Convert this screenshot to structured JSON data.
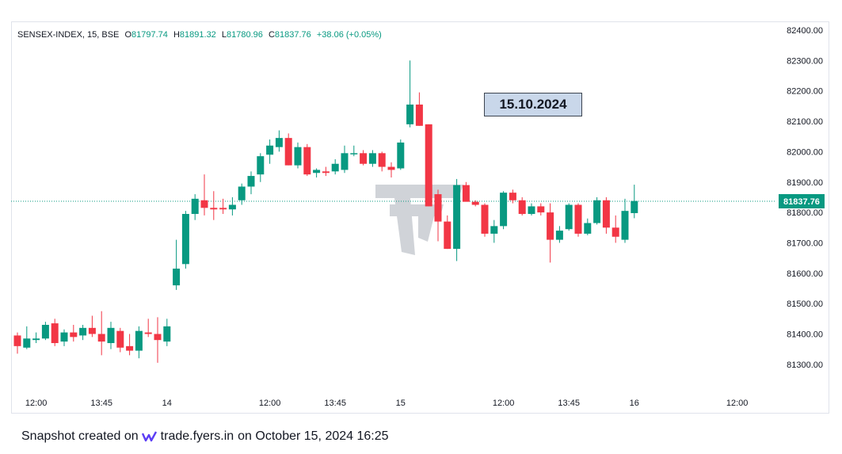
{
  "header": {
    "symbol": "SENSEX-INDEX, 15, BSE",
    "open_label": "O",
    "open": "81797.74",
    "high_label": "H",
    "high": "81891.32",
    "low_label": "L",
    "low": "81780.96",
    "close_label": "C",
    "close": "81837.76",
    "change": "+38.06 (+0.05%)"
  },
  "annotation": {
    "date": "15.10.2024"
  },
  "footer": {
    "prefix": "Snapshot created on",
    "brand": "trade.fyers.in",
    "suffix": "on October 15, 2024 16:25"
  },
  "colors": {
    "up": "#089981",
    "down": "#f23645",
    "badge_bg": "#c9d7ea",
    "last_price": "#089981"
  },
  "icons": [
    "fyers-logo-icon",
    "fyers-watermark"
  ],
  "chart_data": {
    "type": "candlestick",
    "last_price": 81837.76,
    "last_price_label": "81837.76",
    "ylim": [
      81200,
      82450
    ],
    "y_ticks": [
      {
        "value": 82400,
        "label": "82400.00"
      },
      {
        "value": 82300,
        "label": "82300.00"
      },
      {
        "value": 82200,
        "label": "82200.00"
      },
      {
        "value": 82100,
        "label": "82100.00"
      },
      {
        "value": 82000,
        "label": "82000.00"
      },
      {
        "value": 81900,
        "label": "81900.00"
      },
      {
        "value": 81800,
        "label": "81800.00"
      },
      {
        "value": 81700,
        "label": "81700.00"
      },
      {
        "value": 81600,
        "label": "81600.00"
      },
      {
        "value": 81500,
        "label": "81500.00"
      },
      {
        "value": 81400,
        "label": "81400.00"
      },
      {
        "value": 81300,
        "label": "81300.00"
      }
    ],
    "x_ticks": [
      {
        "index": 2,
        "label": "12:00"
      },
      {
        "index": 9,
        "label": "13:45"
      },
      {
        "index": 16,
        "label": "14"
      },
      {
        "index": 27,
        "label": "12:00"
      },
      {
        "index": 34,
        "label": "13:45"
      },
      {
        "index": 41,
        "label": "15"
      },
      {
        "index": 52,
        "label": "12:00"
      },
      {
        "index": 59,
        "label": "13:45"
      },
      {
        "index": 66,
        "label": "16"
      },
      {
        "index": 77,
        "label": "12:00"
      }
    ],
    "candles": [
      {
        "o": 81395,
        "h": 81405,
        "l": 81335,
        "c": 81360
      },
      {
        "o": 81355,
        "h": 81425,
        "l": 81350,
        "c": 81385
      },
      {
        "o": 81380,
        "h": 81405,
        "l": 81370,
        "c": 81385
      },
      {
        "o": 81385,
        "h": 81440,
        "l": 81380,
        "c": 81430
      },
      {
        "o": 81435,
        "h": 81450,
        "l": 81360,
        "c": 81370
      },
      {
        "o": 81375,
        "h": 81415,
        "l": 81360,
        "c": 81405
      },
      {
        "o": 81405,
        "h": 81430,
        "l": 81375,
        "c": 81390
      },
      {
        "o": 81395,
        "h": 81430,
        "l": 81380,
        "c": 81420
      },
      {
        "o": 81420,
        "h": 81460,
        "l": 81390,
        "c": 81400
      },
      {
        "o": 81400,
        "h": 81475,
        "l": 81330,
        "c": 81375
      },
      {
        "o": 81370,
        "h": 81440,
        "l": 81350,
        "c": 81420
      },
      {
        "o": 81410,
        "h": 81420,
        "l": 81340,
        "c": 81355
      },
      {
        "o": 81360,
        "h": 81400,
        "l": 81330,
        "c": 81345
      },
      {
        "o": 81345,
        "h": 81425,
        "l": 81320,
        "c": 81410
      },
      {
        "o": 81405,
        "h": 81450,
        "l": 81390,
        "c": 81400
      },
      {
        "o": 81400,
        "h": 81455,
        "l": 81305,
        "c": 81380
      },
      {
        "o": 81375,
        "h": 81450,
        "l": 81360,
        "c": 81425
      },
      {
        "o": 81560,
        "h": 81710,
        "l": 81545,
        "c": 81615
      },
      {
        "o": 81630,
        "h": 81805,
        "l": 81615,
        "c": 81795
      },
      {
        "o": 81795,
        "h": 81860,
        "l": 81775,
        "c": 81845
      },
      {
        "o": 81840,
        "h": 81925,
        "l": 81790,
        "c": 81815
      },
      {
        "o": 81815,
        "h": 81870,
        "l": 81775,
        "c": 81810
      },
      {
        "o": 81815,
        "h": 81845,
        "l": 81795,
        "c": 81810
      },
      {
        "o": 81810,
        "h": 81850,
        "l": 81790,
        "c": 81825
      },
      {
        "o": 81840,
        "h": 81895,
        "l": 81825,
        "c": 81885
      },
      {
        "o": 81885,
        "h": 81935,
        "l": 81860,
        "c": 81920
      },
      {
        "o": 81925,
        "h": 81995,
        "l": 81900,
        "c": 81985
      },
      {
        "o": 81990,
        "h": 82040,
        "l": 81960,
        "c": 82020
      },
      {
        "o": 82015,
        "h": 82070,
        "l": 82000,
        "c": 82045
      },
      {
        "o": 82045,
        "h": 82060,
        "l": 81955,
        "c": 81955
      },
      {
        "o": 81955,
        "h": 82030,
        "l": 81945,
        "c": 82015
      },
      {
        "o": 82015,
        "h": 82025,
        "l": 81920,
        "c": 81925
      },
      {
        "o": 81930,
        "h": 81945,
        "l": 81915,
        "c": 81940
      },
      {
        "o": 81935,
        "h": 81950,
        "l": 81920,
        "c": 81930
      },
      {
        "o": 81935,
        "h": 81975,
        "l": 81925,
        "c": 81960
      },
      {
        "o": 81940,
        "h": 82020,
        "l": 81930,
        "c": 81995
      },
      {
        "o": 81995,
        "h": 82020,
        "l": 81985,
        "c": 81995
      },
      {
        "o": 81995,
        "h": 82005,
        "l": 81955,
        "c": 81960
      },
      {
        "o": 81960,
        "h": 82005,
        "l": 81950,
        "c": 81995
      },
      {
        "o": 81995,
        "h": 82000,
        "l": 81935,
        "c": 81950
      },
      {
        "o": 81950,
        "h": 81965,
        "l": 81915,
        "c": 81940
      },
      {
        "o": 81945,
        "h": 82040,
        "l": 81940,
        "c": 82030
      },
      {
        "o": 82090,
        "h": 82300,
        "l": 82080,
        "c": 82155
      },
      {
        "o": 82155,
        "h": 82195,
        "l": 82085,
        "c": 82085
      },
      {
        "o": 82090,
        "h": 82090,
        "l": 81820,
        "c": 81820
      },
      {
        "o": 81860,
        "h": 81875,
        "l": 81705,
        "c": 81770
      },
      {
        "o": 81770,
        "h": 81790,
        "l": 81680,
        "c": 81680
      },
      {
        "o": 81680,
        "h": 81910,
        "l": 81640,
        "c": 81890
      },
      {
        "o": 81890,
        "h": 81900,
        "l": 81840,
        "c": 81835
      },
      {
        "o": 81835,
        "h": 81840,
        "l": 81820,
        "c": 81825
      },
      {
        "o": 81825,
        "h": 81830,
        "l": 81720,
        "c": 81730
      },
      {
        "o": 81730,
        "h": 81775,
        "l": 81700,
        "c": 81755
      },
      {
        "o": 81755,
        "h": 81870,
        "l": 81745,
        "c": 81865
      },
      {
        "o": 81865,
        "h": 81875,
        "l": 81830,
        "c": 81840
      },
      {
        "o": 81840,
        "h": 81850,
        "l": 81790,
        "c": 81795
      },
      {
        "o": 81795,
        "h": 81830,
        "l": 81790,
        "c": 81820
      },
      {
        "o": 81820,
        "h": 81830,
        "l": 81790,
        "c": 81800
      },
      {
        "o": 81800,
        "h": 81830,
        "l": 81635,
        "c": 81710
      },
      {
        "o": 81710,
        "h": 81755,
        "l": 81700,
        "c": 81740
      },
      {
        "o": 81745,
        "h": 81830,
        "l": 81740,
        "c": 81825
      },
      {
        "o": 81825,
        "h": 81830,
        "l": 81720,
        "c": 81730
      },
      {
        "o": 81730,
        "h": 81780,
        "l": 81725,
        "c": 81765
      },
      {
        "o": 81765,
        "h": 81850,
        "l": 81760,
        "c": 81840
      },
      {
        "o": 81840,
        "h": 81850,
        "l": 81730,
        "c": 81750
      },
      {
        "o": 81750,
        "h": 81790,
        "l": 81700,
        "c": 81720
      },
      {
        "o": 81710,
        "h": 81845,
        "l": 81700,
        "c": 81805
      },
      {
        "o": 81797.74,
        "h": 81891.32,
        "l": 81780.96,
        "c": 81837.76
      }
    ]
  }
}
